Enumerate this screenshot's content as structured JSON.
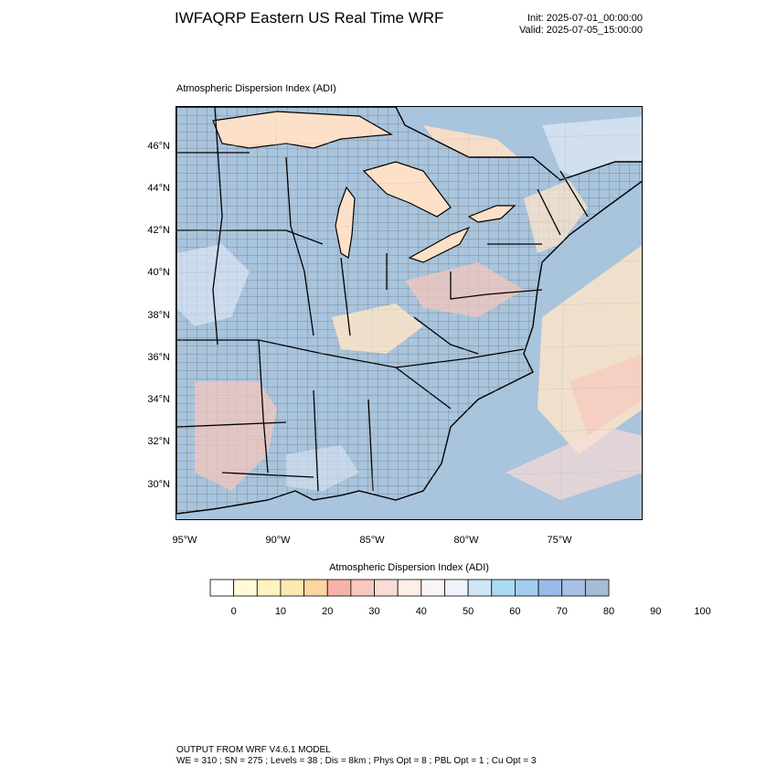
{
  "header": {
    "title": "IWFAQRP Eastern US Real Time WRF",
    "init": "Init: 2025-07-01_00:00:00",
    "valid": "Valid: 2025-07-05_15:00:00"
  },
  "map": {
    "field_title": "Atmospheric Dispersion Index   (ADI)",
    "lat_labels": [
      "46°N",
      "44°N",
      "42°N",
      "40°N",
      "38°N",
      "36°N",
      "34°N",
      "32°N",
      "30°N"
    ],
    "lon_labels": [
      "95°W",
      "90°W",
      "85°W",
      "80°W",
      "75°W"
    ],
    "colors": {
      "ocean": "#a9c4dd",
      "land_low": "#fde5c8",
      "land_mid": "#f6c7bc",
      "land_high": "#a9c4dd",
      "water_lake": "#fde0c8",
      "border": "#000000"
    }
  },
  "legend": {
    "title": "Atmospheric Dispersion Index  (ADI)",
    "labels": [
      "0",
      "10",
      "20",
      "30",
      "40",
      "50",
      "60",
      "70",
      "80",
      "90",
      "100"
    ],
    "colors": [
      "#ffffff",
      "#fffbd8",
      "#fff3bf",
      "#fde8b0",
      "#fbd6a0",
      "#f6b2a6",
      "#f7c7c0",
      "#f9dcd6",
      "#fdeee8",
      "#fbf4f4",
      "#eef2fb",
      "#cfe6f6",
      "#a9dbf3",
      "#a3cdf0",
      "#9bbbe8",
      "#a8bfe6",
      "#a4bcd6"
    ]
  },
  "footer": {
    "model": "OUTPUT FROM WRF V4.6.1 MODEL",
    "params": "WE = 310 ; SN = 275 ; Levels = 38 ; Dis = 8km ; Phys Opt = 8 ; PBL Opt = 1 ; Cu Opt = 3"
  }
}
